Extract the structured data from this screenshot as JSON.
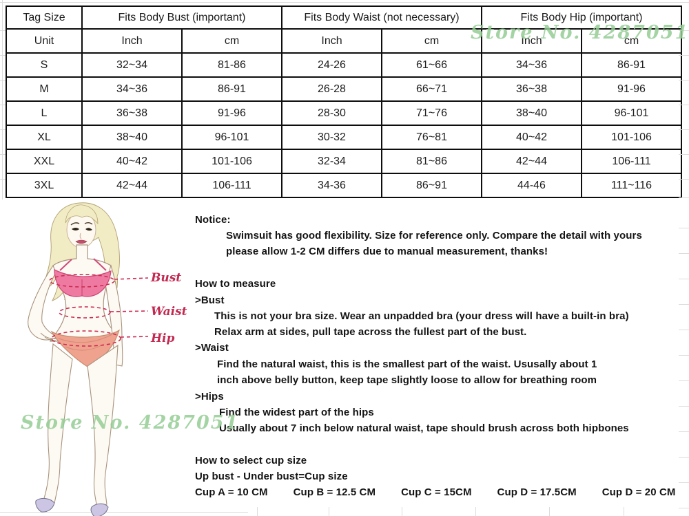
{
  "watermark": {
    "text": "Store No. 4287051"
  },
  "size_table": {
    "group_headers": {
      "tag": "Tag Size",
      "bust": "Fits Body Bust (important)",
      "waist": "Fits Body Waist (not necessary)",
      "hip": "Fits Body Hip (important)"
    },
    "unit_label": "Unit",
    "units": [
      "Inch",
      "cm",
      "Inch",
      "cm",
      "Inch",
      "cm"
    ],
    "rows": [
      {
        "size": "S",
        "values": [
          "32~34",
          "81-86",
          "24-26",
          "61~66",
          "34~36",
          "86-91"
        ]
      },
      {
        "size": "M",
        "values": [
          "34~36",
          "86-91",
          "26-28",
          "66~71",
          "36~38",
          "91-96"
        ]
      },
      {
        "size": "L",
        "values": [
          "36~38",
          "91-96",
          "28-30",
          "71~76",
          "38~40",
          "96-101"
        ]
      },
      {
        "size": "XL",
        "values": [
          "38~40",
          "96-101",
          "30-32",
          "76~81",
          "40~42",
          "101-106"
        ]
      },
      {
        "size": "XXL",
        "values": [
          "40~42",
          "101-106",
          "32-34",
          "81~86",
          "42~44",
          "106-111"
        ]
      },
      {
        "size": "3XL",
        "values": [
          "42~44",
          "106-111",
          "34-36",
          "86~91",
          "44-46",
          "111~116"
        ]
      }
    ]
  },
  "figure_labels": {
    "bust": "Bust",
    "waist": "Waist",
    "hip": "Hip"
  },
  "notice": {
    "heading": "Notice:",
    "line1": "Swimsuit has good flexibility. Size for reference only. Compare the detail with yours",
    "line2": "please allow 1-2 CM differs due to manual measurement, thanks!"
  },
  "measure": {
    "heading": "How to measure",
    "bust_heading": ">Bust",
    "bust_line1": "This is not your bra size. Wear an unpadded bra (your dress will have a built-in bra)",
    "bust_line2": "Relax arm at sides, pull tape across the fullest part of the bust.",
    "waist_heading": ">Waist",
    "waist_line1": "Find the natural waist, this is the smallest part of the waist. Ususally about 1",
    "waist_line2": "inch above belly button, keep tape slightly loose to allow for breathing room",
    "hips_heading": ">Hips",
    "hips_line1": "Find the widest part of the hips",
    "hips_line2": "Usually about 7 inch below natural waist, tape should brush across both hipbones"
  },
  "cup": {
    "heading": "How to select cup size",
    "formula": "Up bust - Under bust=Cup size",
    "entries": [
      "Cup A = 10 CM",
      "Cup B = 12.5 CM",
      "Cup C = 15CM",
      "Cup D = 17.5CM",
      "Cup D = 20 CM"
    ]
  }
}
